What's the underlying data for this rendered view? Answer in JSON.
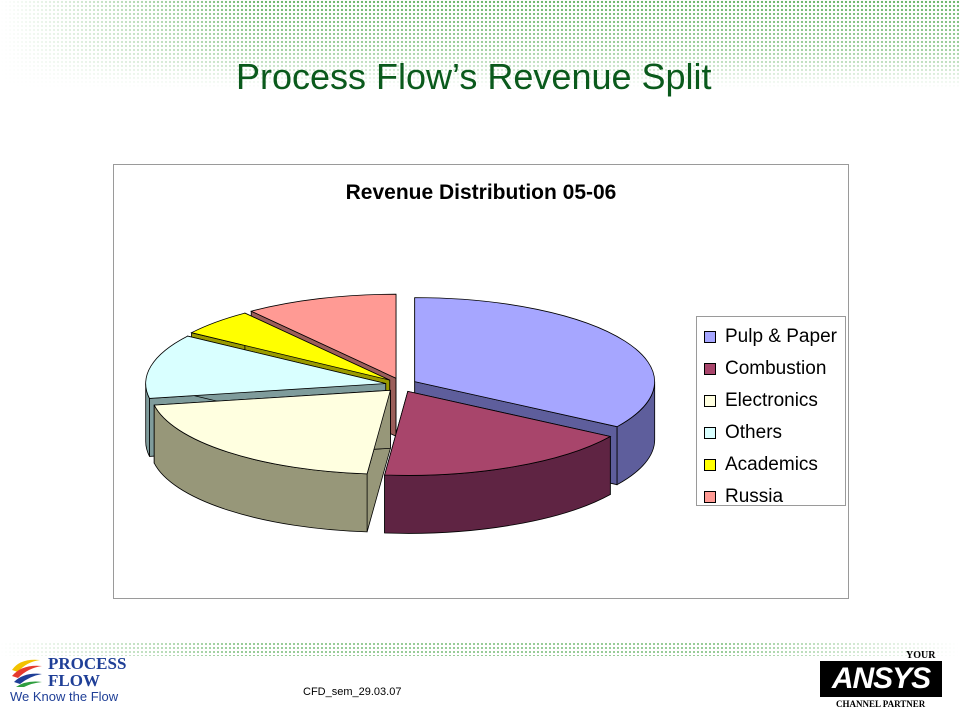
{
  "slide": {
    "title": "Process Flow’s Revenue Split",
    "footer_code": "CFD_sem_29.03.07"
  },
  "logos": {
    "process_flow": {
      "line1": "PROCESS",
      "line2": "FLOW",
      "tagline": "We Know the Flow"
    },
    "ansys": {
      "top": "YOUR",
      "mark": "ANSYS",
      "bottom": "CHANNEL PARTNER"
    }
  },
  "chart_data": {
    "type": "pie",
    "title": "Revenue Distribution 05-06",
    "categories": [
      "Pulp & Paper",
      "Combustion",
      "Electronics",
      "Others",
      "Academics",
      "Russia"
    ],
    "values": [
      33,
      17,
      20,
      12,
      5,
      10
    ],
    "exploded": true,
    "style": "3d",
    "legend_position": "right",
    "colors": [
      "#a6a6ff",
      "#a8456b",
      "#ffffe0",
      "#d9ffff",
      "#ffff00",
      "#ff9a94"
    ],
    "side_colors": [
      "#5e5e9c",
      "#5f2443",
      "#979779",
      "#7f9c9c",
      "#9b9b00",
      "#9b5e5a"
    ]
  }
}
